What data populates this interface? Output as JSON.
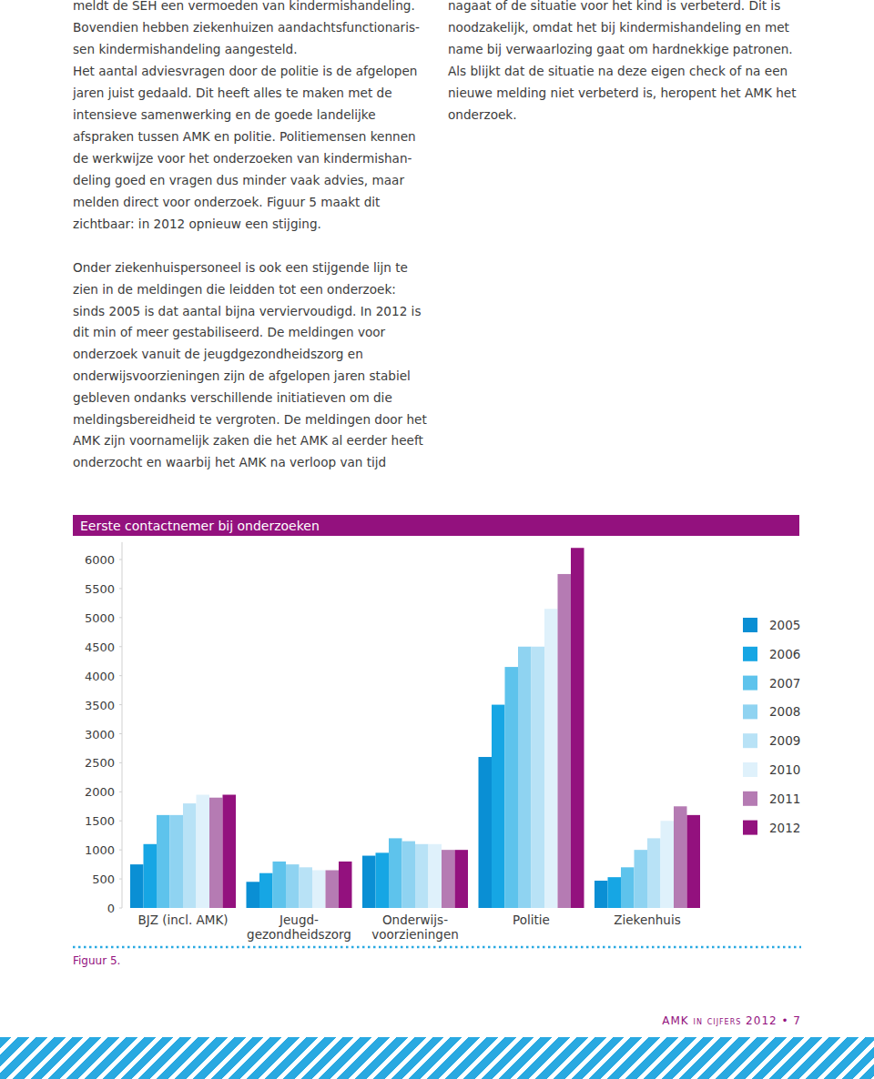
{
  "text": {
    "left_column": [
      "meldt de SEH een vermoeden van kindermishandeling.",
      "Bovendien hebben ziekenhuizen aandachtsfunctionaris-",
      "sen kindermishandeling aangesteld.",
      "Het aantal adviesvragen door de politie is de afgelopen",
      "jaren juist gedaald. Dit heeft alles te maken met de",
      "intensieve samenwerking en de goede landelijke",
      "afspraken tussen AMK en politie. Politiemensen kennen",
      "de werkwijze voor het onderzoeken van kindermishan-",
      "deling goed en vragen dus minder vaak advies, maar",
      "melden direct voor onderzoek. Figuur 5 maakt dit",
      "zichtbaar: in 2012 opnieuw een stijging."
    ],
    "right_column": [
      "nagaat of de situatie voor het kind is verbeterd. Dit is",
      "noodzakelijk, omdat het bij kindermishandeling en met",
      "name bij verwaarlozing gaat om hardnekkige patronen.",
      "Als blijkt dat de situatie na deze eigen check of na een",
      "nieuwe melding  niet verbeterd is, heropent het AMK het",
      "onderzoek."
    ],
    "paragraph": [
      "Onder ziekenhuispersoneel is ook een stijgende lijn te",
      "zien in de meldingen die leidden tot een onderzoek:",
      "sinds 2005 is dat aantal bijna verviervoudigd. In 2012 is",
      "dit min of meer gestabiliseerd. De meldingen voor",
      "onderzoek vanuit de jeugdgezondheidszorg en",
      "onderwijsvoorzieningen zijn de afgelopen jaren stabiel",
      "gebleven ondanks verschillende initiatieven om die",
      "meldingsbereidheid te vergroten. De meldingen door het",
      "AMK zijn voornamelijk zaken die het AMK al eerder heeft",
      "onderzocht en waarbij het AMK na verloop van tijd"
    ],
    "figure_caption": "Figuur 5.",
    "footer": "AMK in cijfers 2012 • 7"
  },
  "chart_data": {
    "type": "bar",
    "title": "Eerste contactnemer bij onderzoeken",
    "categories": [
      "BJZ (incl. AMK)",
      "Jeugd-\ngezondheidszorg",
      "Onderwijs-\nvoorzieningen",
      "Politie",
      "Ziekenhuis"
    ],
    "series": [
      {
        "name": "2005",
        "color": "#0a8fd4",
        "values": [
          750,
          450,
          900,
          2600,
          470
        ]
      },
      {
        "name": "2006",
        "color": "#16a6e4",
        "values": [
          1100,
          600,
          950,
          3500,
          530
        ]
      },
      {
        "name": "2007",
        "color": "#5ec3ec",
        "values": [
          1600,
          800,
          1200,
          4150,
          700
        ]
      },
      {
        "name": "2008",
        "color": "#8fd3f1",
        "values": [
          1600,
          750,
          1150,
          4500,
          1000
        ]
      },
      {
        "name": "2009",
        "color": "#b8e2f6",
        "values": [
          1800,
          700,
          1100,
          4500,
          1200
        ]
      },
      {
        "name": "2010",
        "color": "#dff1fb",
        "values": [
          1950,
          650,
          1100,
          5150,
          1500
        ]
      },
      {
        "name": "2011",
        "color": "#b57bb3",
        "values": [
          1900,
          650,
          1000,
          5750,
          1750
        ]
      },
      {
        "name": "2012",
        "color": "#93117e",
        "values": [
          1950,
          800,
          1000,
          6200,
          1600
        ]
      }
    ],
    "ylim": [
      0,
      6300
    ],
    "yticks": [
      0,
      500,
      1000,
      1500,
      2000,
      2500,
      3000,
      3500,
      4000,
      4500,
      5000,
      5500,
      6000
    ],
    "grid": false,
    "legend": "right"
  }
}
